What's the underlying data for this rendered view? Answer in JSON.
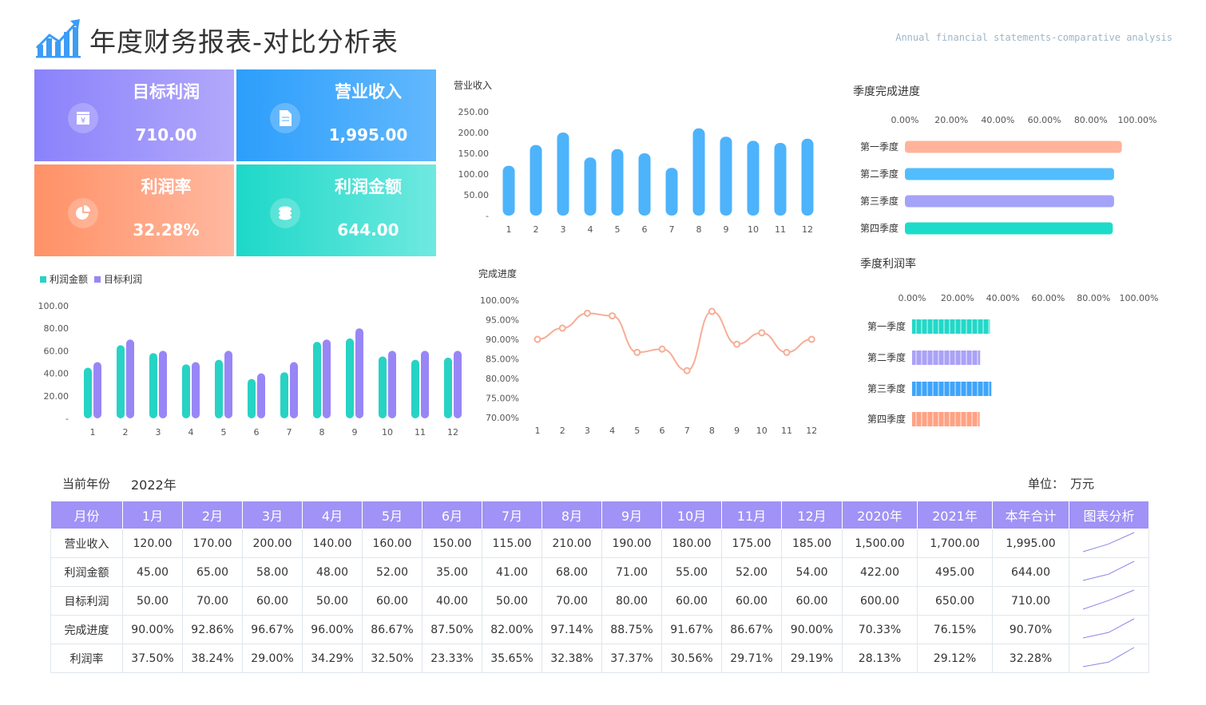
{
  "header": {
    "title": "年度财务报表-对比分析表",
    "subtitle": "Annual financial statements-comparative analysis",
    "icon": "bar-chart-trend-icon"
  },
  "cards": [
    {
      "label": "目标利润",
      "value": "710.00",
      "icon": "yen-box-icon",
      "colors": [
        "#8a82fb",
        "#b2a8fb"
      ]
    },
    {
      "label": "营业收入",
      "value": "1,995.00",
      "icon": "document-icon",
      "colors": [
        "#2c9efb",
        "#62b8fd"
      ]
    },
    {
      "label": "利润率",
      "value": "32.28%",
      "icon": "pie-chart-icon",
      "colors": [
        "#ff9166",
        "#ffb8a0"
      ]
    },
    {
      "label": "利润金额",
      "value": "644.00",
      "icon": "coins-icon",
      "colors": [
        "#1dd8c8",
        "#6fe9e0"
      ]
    }
  ],
  "chart_data": [
    {
      "type": "bar",
      "title": "营业收入",
      "categories": [
        "1",
        "2",
        "3",
        "4",
        "5",
        "6",
        "7",
        "8",
        "9",
        "10",
        "11",
        "12"
      ],
      "values": [
        120,
        170,
        200,
        140,
        160,
        150,
        115,
        210,
        190,
        180,
        175,
        185
      ],
      "yticks": [
        "250.00",
        "200.00",
        "150.00",
        "100.00",
        "50.00",
        "-"
      ],
      "ylim": [
        0,
        250
      ],
      "color": "#4db3fb"
    },
    {
      "type": "bar",
      "legend": [
        "利润金额",
        "目标利润"
      ],
      "legend_position": "top-left",
      "categories": [
        "1",
        "2",
        "3",
        "4",
        "5",
        "6",
        "7",
        "8",
        "9",
        "10",
        "11",
        "12"
      ],
      "series": [
        {
          "name": "利润金额",
          "values": [
            45,
            65,
            58,
            48,
            52,
            35,
            41,
            68,
            71,
            55,
            52,
            54
          ],
          "color": "#27d3c4"
        },
        {
          "name": "目标利润",
          "values": [
            50,
            70,
            60,
            50,
            60,
            40,
            50,
            70,
            80,
            60,
            60,
            60
          ],
          "color": "#9886f6"
        }
      ],
      "yticks": [
        "100.00",
        "80.00",
        "60.00",
        "40.00",
        "20.00",
        "-"
      ],
      "ylim": [
        0,
        100
      ]
    },
    {
      "type": "line",
      "title": "完成进度",
      "categories": [
        "1",
        "2",
        "3",
        "4",
        "5",
        "6",
        "7",
        "8",
        "9",
        "10",
        "11",
        "12"
      ],
      "values": [
        90.0,
        92.86,
        96.67,
        96.0,
        86.67,
        87.5,
        82.0,
        97.14,
        88.75,
        91.67,
        86.67,
        90.0
      ],
      "yticks": [
        "100.00%",
        "95.00%",
        "90.00%",
        "85.00%",
        "80.00%",
        "75.00%",
        "70.00%"
      ],
      "ylim": [
        70,
        100
      ],
      "color": "#f7ad95"
    },
    {
      "type": "bar",
      "orientation": "horizontal",
      "title": "季度完成进度",
      "categories": [
        "第一季度",
        "第二季度",
        "第三季度",
        "第四季度"
      ],
      "values": [
        93.33,
        90.0,
        90.0,
        89.44
      ],
      "xticks": [
        "0.00%",
        "20.00%",
        "40.00%",
        "60.00%",
        "80.00%",
        "100.00%"
      ],
      "xlim": [
        0,
        100
      ],
      "colors": [
        "#ffb39a",
        "#52bdfc",
        "#a5a3f8",
        "#1cdcc9"
      ]
    },
    {
      "type": "bar",
      "orientation": "horizontal",
      "style": "striped",
      "title": "季度利润率",
      "categories": [
        "第一季度",
        "第二季度",
        "第三季度",
        "第四季度"
      ],
      "values": [
        34.29,
        30.0,
        34.95,
        29.81
      ],
      "xticks": [
        "0.00%",
        "20.00%",
        "40.00%",
        "60.00%",
        "80.00%",
        "100.00%"
      ],
      "xlim": [
        0,
        100
      ],
      "colors": [
        "#22d8c7",
        "#aaa2f7",
        "#3ea5fb",
        "#ffa283"
      ]
    }
  ],
  "table_meta": {
    "year_label": "当前年份",
    "year_value": "2022年",
    "unit_label": "单位：",
    "unit_value": "万元"
  },
  "table": {
    "headers": [
      "月份",
      "1月",
      "2月",
      "3月",
      "4月",
      "5月",
      "6月",
      "7月",
      "8月",
      "9月",
      "10月",
      "11月",
      "12月",
      "2020年",
      "2021年",
      "本年合计",
      "图表分析"
    ],
    "rows": [
      {
        "cells": [
          "营业收入",
          "120.00",
          "170.00",
          "200.00",
          "140.00",
          "160.00",
          "150.00",
          "115.00",
          "210.00",
          "190.00",
          "180.00",
          "175.00",
          "185.00",
          "1,500.00",
          "1,700.00",
          "1,995.00"
        ],
        "spark": [
          1500,
          1700,
          1995
        ]
      },
      {
        "cells": [
          "利润金额",
          "45.00",
          "65.00",
          "58.00",
          "48.00",
          "52.00",
          "35.00",
          "41.00",
          "68.00",
          "71.00",
          "55.00",
          "52.00",
          "54.00",
          "422.00",
          "495.00",
          "644.00"
        ],
        "spark": [
          422,
          495,
          644
        ]
      },
      {
        "cells": [
          "目标利润",
          "50.00",
          "70.00",
          "60.00",
          "50.00",
          "60.00",
          "40.00",
          "50.00",
          "70.00",
          "80.00",
          "60.00",
          "60.00",
          "60.00",
          "600.00",
          "650.00",
          "710.00"
        ],
        "spark": [
          600,
          650,
          710
        ]
      },
      {
        "cells": [
          "完成进度",
          "90.00%",
          "92.86%",
          "96.67%",
          "96.00%",
          "86.67%",
          "87.50%",
          "82.00%",
          "97.14%",
          "88.75%",
          "91.67%",
          "86.67%",
          "90.00%",
          "70.33%",
          "76.15%",
          "90.70%"
        ],
        "spark": [
          70.33,
          76.15,
          90.7
        ]
      },
      {
        "cells": [
          "利润率",
          "37.50%",
          "38.24%",
          "29.00%",
          "34.29%",
          "32.50%",
          "23.33%",
          "35.65%",
          "32.38%",
          "37.37%",
          "30.56%",
          "29.71%",
          "29.19%",
          "28.13%",
          "29.12%",
          "32.28%"
        ],
        "spark": [
          28.13,
          29.12,
          32.28
        ]
      }
    ],
    "spark_color": "#8d86e8"
  }
}
